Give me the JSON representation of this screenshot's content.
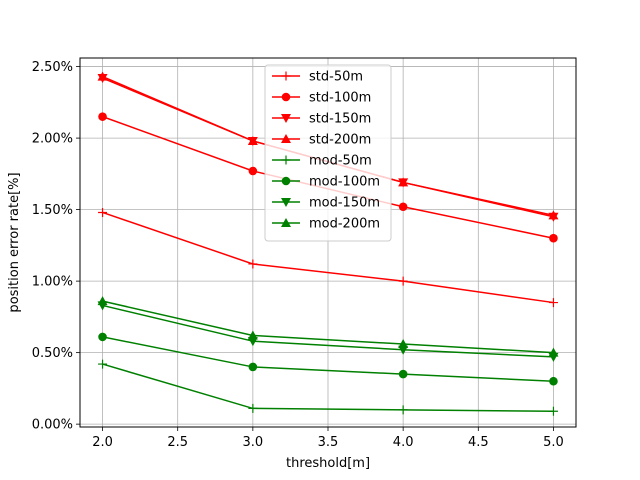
{
  "chart_data": {
    "type": "line",
    "title": "",
    "xlabel": "threshold[m]",
    "ylabel": "position error rate[%]",
    "xlim": [
      1.85,
      5.15
    ],
    "ylim": [
      -0.0002,
      0.0256
    ],
    "xticks": [
      2.0,
      2.5,
      3.0,
      3.5,
      4.0,
      4.5,
      5.0
    ],
    "xtick_labels": [
      "2.0",
      "2.5",
      "3.0",
      "3.5",
      "4.0",
      "4.5",
      "5.0"
    ],
    "yticks": [
      0.0,
      0.005,
      0.01,
      0.015,
      0.02,
      0.025
    ],
    "ytick_labels": [
      "0.00%",
      "0.50%",
      "1.00%",
      "1.50%",
      "2.00%",
      "2.50%"
    ],
    "grid": true,
    "legend_position": "top-center",
    "x": [
      2.0,
      3.0,
      4.0,
      5.0
    ],
    "series": [
      {
        "name": "std-50m",
        "color": "#ff0000",
        "marker": "plus",
        "values": [
          0.0148,
          0.0112,
          0.01,
          0.0085
        ]
      },
      {
        "name": "std-100m",
        "color": "#ff0000",
        "marker": "circle",
        "values": [
          0.0215,
          0.0177,
          0.0152,
          0.013
        ]
      },
      {
        "name": "std-150m",
        "color": "#ff0000",
        "marker": "triangle-down",
        "values": [
          0.0242,
          0.0198,
          0.0169,
          0.0145
        ]
      },
      {
        "name": "std-200m",
        "color": "#ff0000",
        "marker": "triangle-up",
        "values": [
          0.0243,
          0.0198,
          0.0169,
          0.0146
        ]
      },
      {
        "name": "mod-50m",
        "color": "#008000",
        "marker": "plus",
        "values": [
          0.0042,
          0.0011,
          0.001,
          0.0009
        ]
      },
      {
        "name": "mod-100m",
        "color": "#008000",
        "marker": "circle",
        "values": [
          0.0061,
          0.004,
          0.0035,
          0.003
        ]
      },
      {
        "name": "mod-150m",
        "color": "#008000",
        "marker": "triangle-down",
        "values": [
          0.0083,
          0.0058,
          0.0052,
          0.0047
        ]
      },
      {
        "name": "mod-200m",
        "color": "#008000",
        "marker": "triangle-up",
        "values": [
          0.0086,
          0.0062,
          0.0056,
          0.005
        ]
      }
    ]
  }
}
